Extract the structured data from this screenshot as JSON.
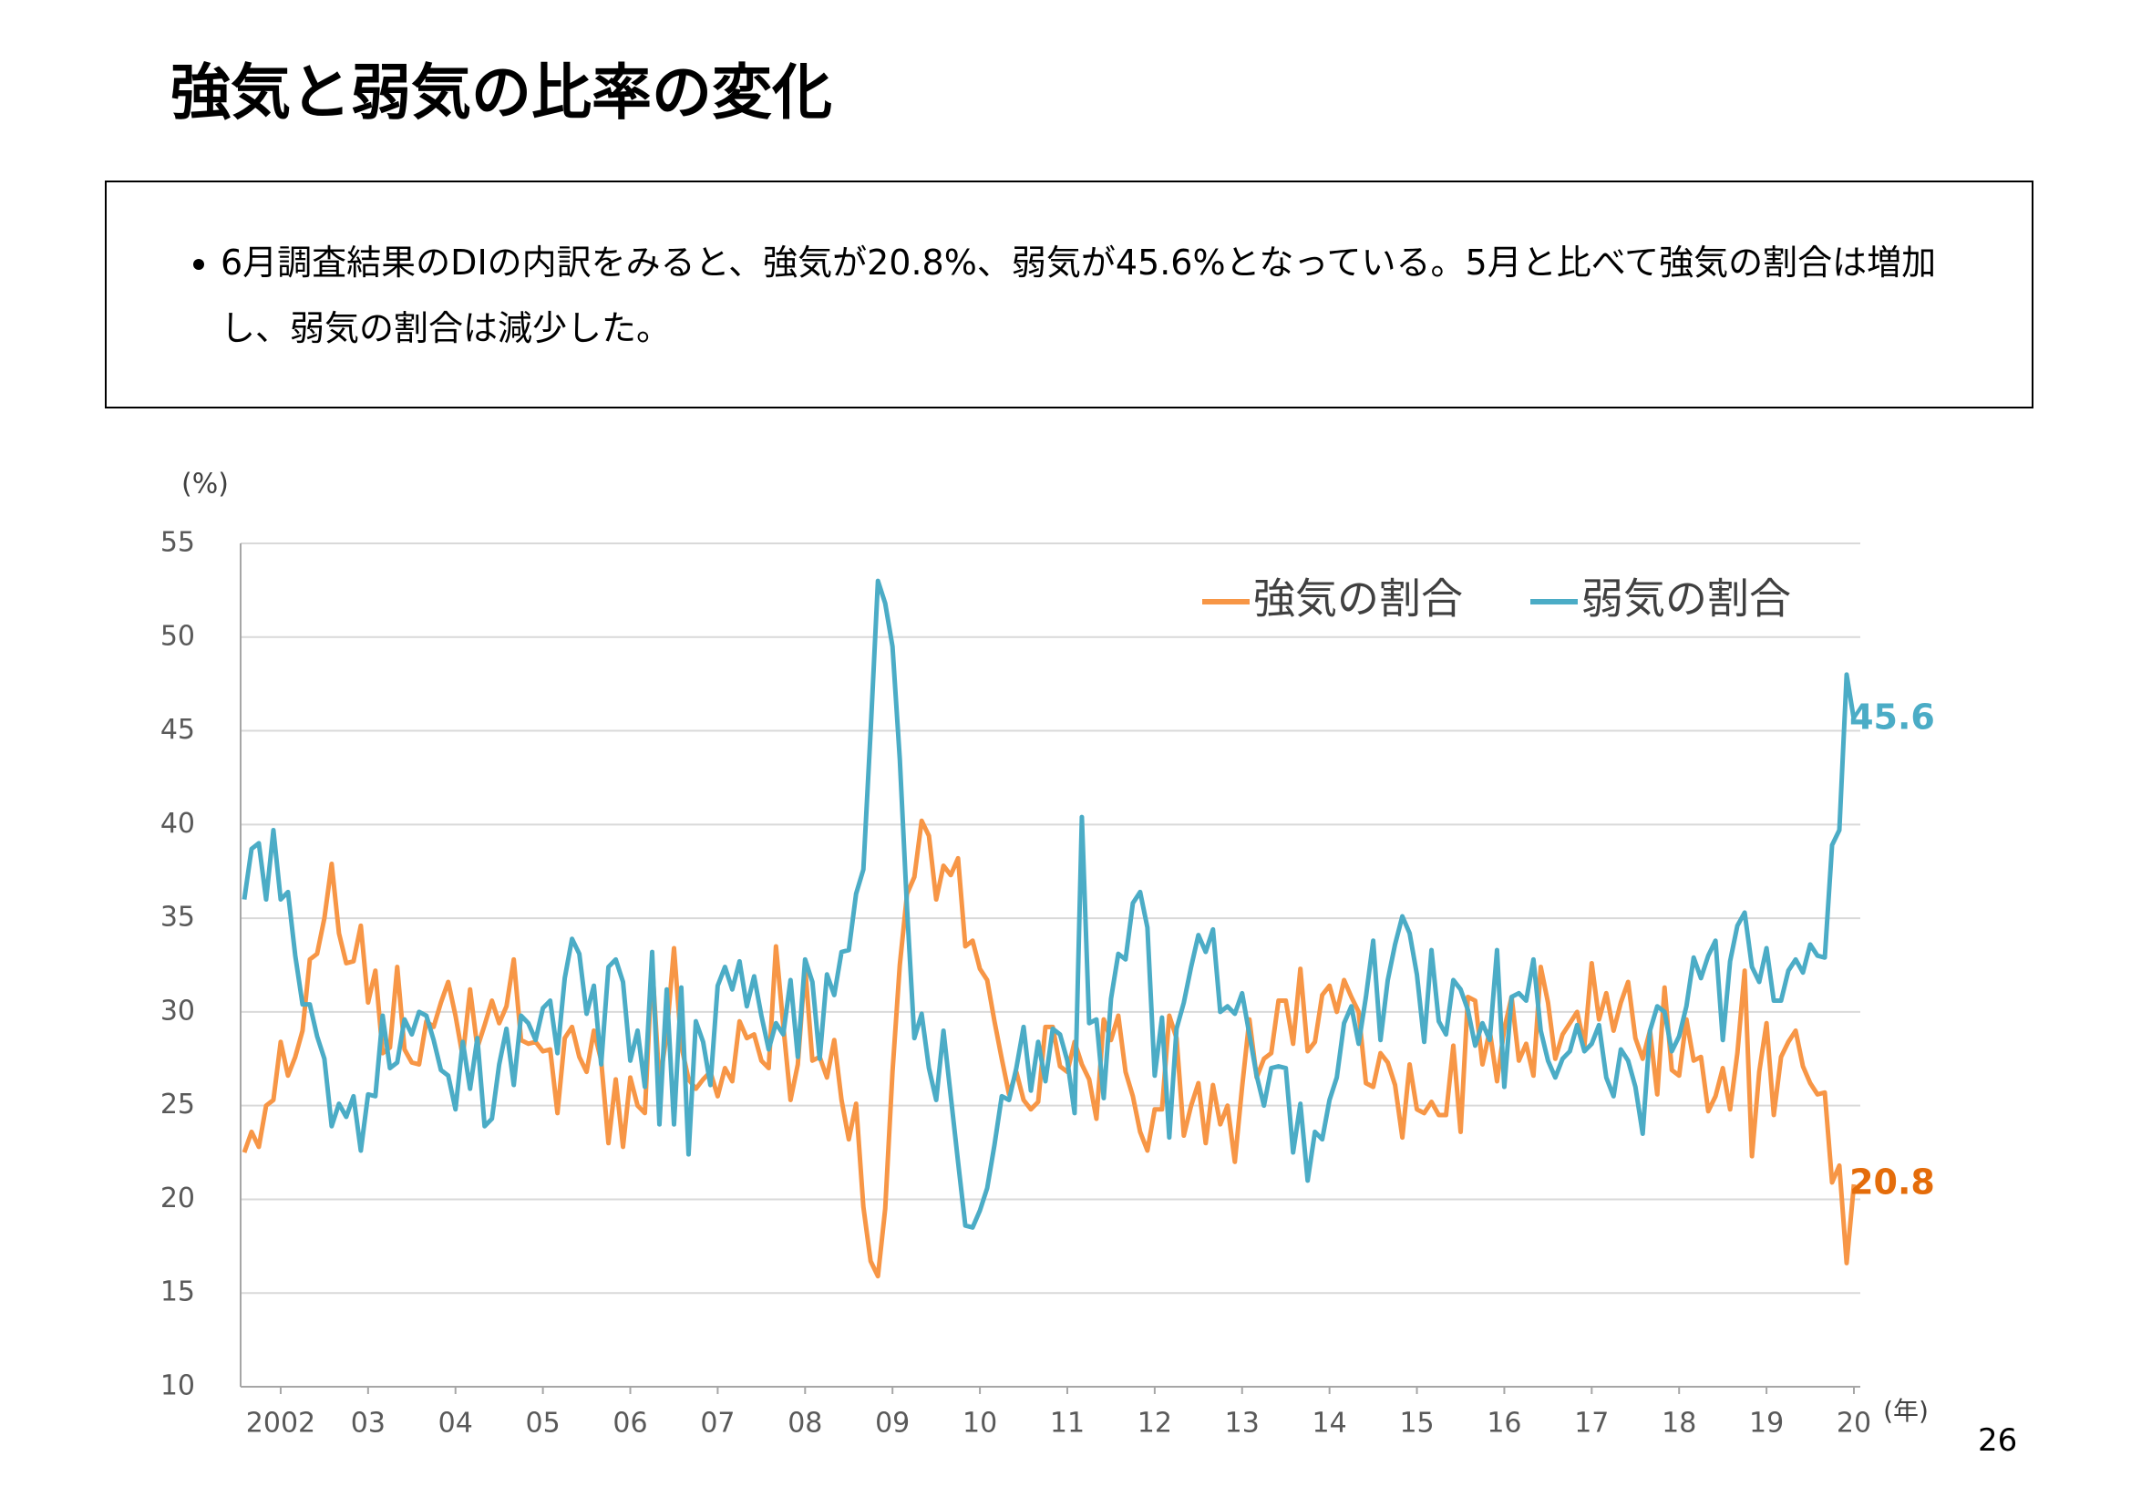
{
  "header": {
    "title": "強気と弱気の比率の変化"
  },
  "body": {
    "bullets": [
      "6月調査結果のDIの内訳をみると、強気が20.8%、弱気が45.6%となっている。5月と比べて強気の割合は増加し、弱気の割合は減少した。"
    ]
  },
  "page_number": "26",
  "chart_data": {
    "type": "line",
    "y_unit": "(%)",
    "x_unit": "(年)",
    "ylim": [
      10,
      55
    ],
    "yticks": [
      10,
      15,
      20,
      25,
      30,
      35,
      40,
      45,
      50,
      55
    ],
    "grid": true,
    "legend": "top-right",
    "categories": [
      null,
      null,
      null,
      null,
      null,
      "2002",
      null,
      null,
      null,
      null,
      null,
      null,
      null,
      null,
      null,
      null,
      null,
      "03",
      null,
      null,
      null,
      null,
      null,
      null,
      null,
      null,
      null,
      null,
      null,
      "04",
      null,
      null,
      null,
      null,
      null,
      null,
      null,
      null,
      null,
      null,
      null,
      "05",
      null,
      null,
      null,
      null,
      null,
      null,
      null,
      null,
      null,
      null,
      null,
      "06",
      null,
      null,
      null,
      null,
      null,
      null,
      null,
      null,
      null,
      null,
      null,
      "07",
      null,
      null,
      null,
      null,
      null,
      null,
      null,
      null,
      null,
      null,
      null,
      "08",
      null,
      null,
      null,
      null,
      null,
      null,
      null,
      null,
      null,
      null,
      null,
      "09",
      null,
      null,
      null,
      null,
      null,
      null,
      null,
      null,
      null,
      null,
      null,
      "10",
      null,
      null,
      null,
      null,
      null,
      null,
      null,
      null,
      null,
      null,
      null,
      "11",
      null,
      null,
      null,
      null,
      null,
      null,
      null,
      null,
      null,
      null,
      null,
      "12",
      null,
      null,
      null,
      null,
      null,
      null,
      null,
      null,
      null,
      null,
      null,
      "13",
      null,
      null,
      null,
      null,
      null,
      null,
      null,
      null,
      null,
      null,
      null,
      "14",
      null,
      null,
      null,
      null,
      null,
      null,
      null,
      null,
      null,
      null,
      null,
      "15",
      null,
      null,
      null,
      null,
      null,
      null,
      null,
      null,
      null,
      null,
      null,
      "16",
      null,
      null,
      null,
      null,
      null,
      null,
      null,
      null,
      null,
      null,
      null,
      "17",
      null,
      null,
      null,
      null,
      null,
      null,
      null,
      null,
      null,
      null,
      null,
      "18",
      null,
      null,
      null,
      null,
      null,
      null,
      null,
      null,
      null,
      null,
      null,
      "19",
      null,
      null,
      null,
      null,
      null,
      null,
      null,
      null,
      null,
      null,
      null,
      "20"
    ],
    "series": [
      {
        "name": "強気の割合",
        "color": "#f79646",
        "label_color": "#e46c0a",
        "values": [
          22.5,
          23.6,
          22.8,
          25.0,
          25.3,
          28.4,
          26.6,
          27.6,
          29.0,
          32.8,
          33.1,
          35.0,
          37.9,
          34.2,
          32.6,
          32.7,
          34.6,
          30.5,
          32.2,
          27.8,
          28.1,
          32.4,
          28.0,
          27.3,
          27.2,
          29.5,
          29.2,
          30.5,
          31.6,
          29.8,
          27.6,
          31.2,
          28.1,
          29.3,
          30.6,
          29.4,
          30.3,
          32.8,
          28.5,
          28.3,
          28.4,
          27.9,
          28.0,
          24.6,
          28.6,
          29.2,
          27.6,
          26.8,
          29.0,
          27.4,
          23.0,
          26.4,
          22.8,
          26.5,
          25.0,
          24.6,
          32.6,
          26.2,
          28.8,
          33.4,
          28.2,
          26.4,
          25.9,
          26.4,
          26.8,
          25.5,
          27.0,
          26.3,
          29.5,
          28.6,
          28.8,
          27.4,
          27.0,
          33.5,
          29.3,
          25.3,
          27.2,
          32.4,
          27.4,
          27.6,
          26.5,
          28.5,
          25.3,
          23.2,
          25.1,
          19.6,
          16.7,
          15.9,
          19.5,
          26.8,
          32.5,
          36.3,
          37.2,
          40.2,
          39.4,
          36.0,
          37.8,
          37.3,
          38.2,
          33.5,
          33.8,
          32.3,
          31.7,
          29.5,
          27.5,
          25.6,
          26.8,
          25.3,
          24.8,
          25.2,
          29.2,
          29.2,
          27.1,
          26.8,
          28.4,
          27.2,
          26.4,
          24.3,
          29.6,
          28.5,
          29.8,
          26.8,
          25.5,
          23.6,
          22.6,
          24.8,
          24.8,
          29.8,
          28.6,
          23.4,
          25.0,
          26.2,
          23.0,
          26.1,
          24.0,
          25.0,
          22.0,
          26.0,
          29.6,
          26.5,
          27.5,
          27.8,
          30.6,
          30.6,
          28.3,
          32.3,
          27.9,
          28.4,
          30.9,
          31.4,
          30.0,
          31.7,
          30.8,
          30.0,
          26.2,
          26.0,
          27.8,
          27.3,
          26.1,
          23.3,
          27.2,
          24.8,
          24.6,
          25.2,
          24.5,
          24.5,
          28.2,
          23.6,
          30.8,
          30.6,
          27.2,
          29.0,
          26.3,
          29.1,
          30.8,
          27.4,
          28.3,
          26.6,
          32.4,
          30.5,
          27.5,
          28.8,
          29.4,
          30.0,
          28.2,
          32.6,
          29.6,
          31.0,
          29.0,
          30.5,
          31.6,
          28.6,
          27.5,
          29.0,
          25.6,
          31.3,
          26.9,
          26.6,
          29.6,
          27.4,
          27.6,
          24.7,
          25.5,
          27.0,
          24.8,
          27.8,
          32.2,
          22.3,
          26.8,
          29.4,
          24.5,
          27.6,
          28.4,
          29.0,
          27.1,
          26.2,
          25.6,
          25.7,
          20.9,
          21.8,
          16.6,
          20.8
        ]
      },
      {
        "name": "弱気の割合",
        "color": "#4bacc6",
        "label_color": "#4bacc6",
        "values": [
          36.0,
          38.7,
          39.0,
          36.0,
          39.7,
          36.0,
          36.4,
          33.0,
          30.4,
          30.4,
          28.7,
          27.5,
          23.9,
          25.1,
          24.4,
          25.5,
          22.6,
          25.6,
          25.5,
          29.8,
          27.0,
          27.3,
          29.6,
          28.8,
          30.0,
          29.8,
          28.5,
          26.9,
          26.6,
          24.8,
          28.4,
          25.9,
          28.6,
          23.9,
          24.3,
          27.2,
          29.1,
          26.1,
          29.8,
          29.4,
          28.5,
          30.2,
          30.6,
          27.8,
          31.8,
          33.9,
          33.1,
          29.9,
          31.4,
          27.2,
          32.4,
          32.8,
          31.6,
          27.4,
          29.0,
          26.0,
          33.2,
          24.0,
          31.2,
          24.0,
          31.3,
          22.4,
          29.5,
          28.4,
          26.1,
          31.4,
          32.4,
          31.2,
          32.7,
          30.3,
          31.9,
          29.8,
          28.0,
          29.4,
          28.8,
          31.7,
          27.6,
          32.8,
          31.6,
          27.5,
          32.0,
          30.9,
          33.2,
          33.3,
          36.3,
          37.6,
          45.0,
          53.0,
          51.8,
          49.5,
          43.5,
          35.5,
          28.6,
          29.9,
          27.0,
          25.3,
          29.0,
          25.5,
          22.0,
          18.6,
          18.5,
          19.4,
          20.6,
          22.9,
          25.5,
          25.3,
          27.0,
          29.2,
          25.8,
          28.4,
          26.3,
          29.1,
          28.8,
          27.4,
          24.6,
          40.4,
          29.4,
          29.6,
          25.4,
          30.7,
          33.1,
          32.8,
          35.8,
          36.4,
          34.5,
          26.6,
          29.7,
          23.3,
          29.1,
          30.5,
          32.4,
          34.1,
          33.2,
          34.4,
          30.0,
          30.3,
          29.9,
          31.0,
          28.8,
          26.6,
          25.0,
          27.0,
          27.1,
          27.0,
          22.5,
          25.1,
          21.0,
          23.6,
          23.2,
          25.3,
          26.5,
          29.4,
          30.3,
          28.3,
          30.8,
          33.8,
          28.5,
          31.7,
          33.6,
          35.1,
          34.2,
          32.0,
          28.4,
          33.3,
          29.5,
          28.8,
          31.7,
          31.2,
          30.1,
          28.2,
          29.4,
          28.5,
          33.3,
          26.0,
          30.8,
          31.0,
          30.6,
          32.8,
          29.0,
          27.4,
          26.5,
          27.5,
          27.9,
          29.3,
          27.9,
          28.3,
          29.3,
          26.5,
          25.5,
          28.0,
          27.4,
          26.0,
          23.5,
          29.0,
          30.3,
          30.0,
          27.9,
          28.7,
          30.3,
          32.9,
          31.8,
          33.0,
          33.8,
          28.5,
          32.7,
          34.6,
          35.3,
          32.4,
          31.6,
          33.4,
          30.6,
          30.6,
          32.2,
          32.8,
          32.1,
          33.6,
          33.0,
          32.9,
          38.9,
          39.7,
          48.0,
          45.6
        ]
      }
    ]
  }
}
